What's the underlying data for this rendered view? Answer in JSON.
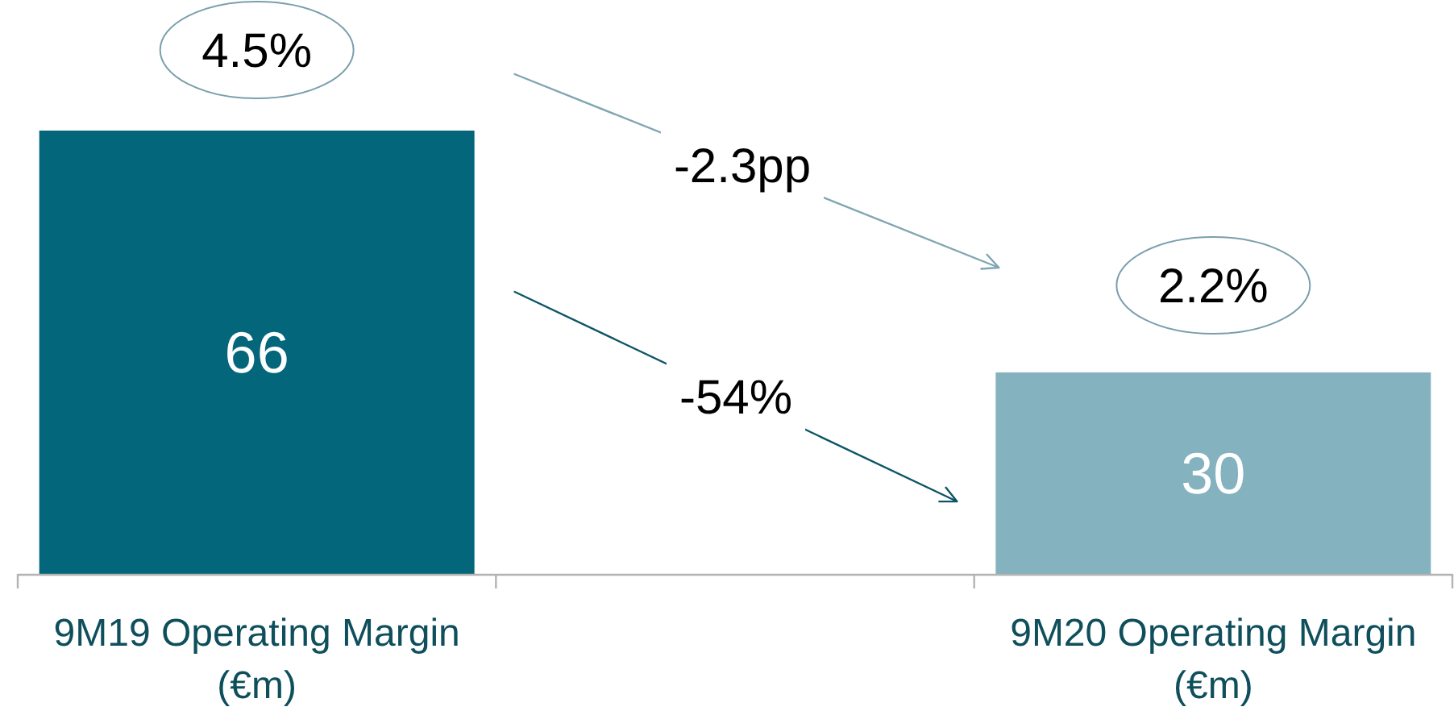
{
  "chart_data": {
    "type": "bar",
    "categories": [
      "9M19 Operating Margin (€m)",
      null,
      "9M20 Operating Margin (€m)"
    ],
    "values": [
      66,
      null,
      30
    ],
    "colors": [
      "#03667a",
      null,
      "#84b2bf"
    ],
    "data_labels": true,
    "annotations": [
      "4.5%",
      "2.2%",
      "-2.3pp",
      "-54%"
    ]
  }
}
